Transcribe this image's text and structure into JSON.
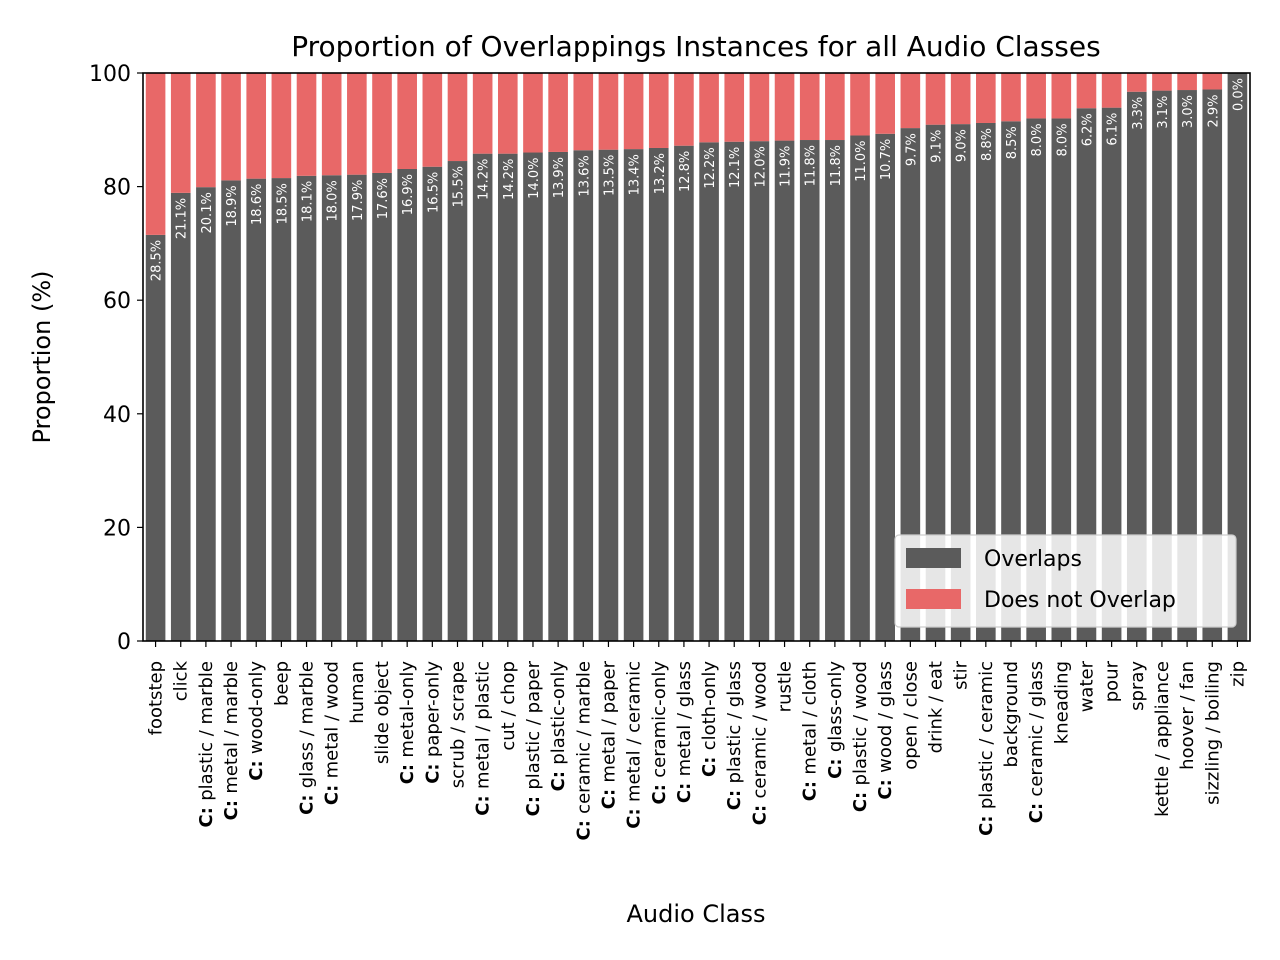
{
  "chart_data": {
    "type": "bar",
    "stacked": true,
    "title": "Proportion of Overlappings Instances for all Audio Classes",
    "xlabel": "Audio Class",
    "ylabel": "Proportion (%)",
    "ylim": [
      0,
      100
    ],
    "yticks": [
      0,
      20,
      40,
      60,
      80,
      100
    ],
    "grid": false,
    "legend_position": "bottom-right",
    "category_prefix": "C:",
    "categories": [
      {
        "label": "footstep",
        "prefixed": false
      },
      {
        "label": "click",
        "prefixed": false
      },
      {
        "label": "plastic / marble",
        "prefixed": true
      },
      {
        "label": "metal / marble",
        "prefixed": true
      },
      {
        "label": "wood-only",
        "prefixed": true
      },
      {
        "label": "beep",
        "prefixed": false
      },
      {
        "label": "glass / marble",
        "prefixed": true
      },
      {
        "label": "metal / wood",
        "prefixed": true
      },
      {
        "label": "human",
        "prefixed": false
      },
      {
        "label": "slide object",
        "prefixed": false
      },
      {
        "label": "metal-only",
        "prefixed": true
      },
      {
        "label": "paper-only",
        "prefixed": true
      },
      {
        "label": "scrub / scrape",
        "prefixed": false
      },
      {
        "label": "metal / plastic",
        "prefixed": true
      },
      {
        "label": "cut / chop",
        "prefixed": false
      },
      {
        "label": "plastic / paper",
        "prefixed": true
      },
      {
        "label": "plastic-only",
        "prefixed": true
      },
      {
        "label": "ceramic / marble",
        "prefixed": true
      },
      {
        "label": "metal / paper",
        "prefixed": true
      },
      {
        "label": "metal / ceramic",
        "prefixed": true
      },
      {
        "label": "ceramic-only",
        "prefixed": true
      },
      {
        "label": "metal / glass",
        "prefixed": true
      },
      {
        "label": "cloth-only",
        "prefixed": true
      },
      {
        "label": "plastic / glass",
        "prefixed": true
      },
      {
        "label": "ceramic / wood",
        "prefixed": true
      },
      {
        "label": "rustle",
        "prefixed": false
      },
      {
        "label": "metal / cloth",
        "prefixed": true
      },
      {
        "label": "glass-only",
        "prefixed": true
      },
      {
        "label": "plastic / wood",
        "prefixed": true
      },
      {
        "label": "wood / glass",
        "prefixed": true
      },
      {
        "label": "open / close",
        "prefixed": false
      },
      {
        "label": "drink / eat",
        "prefixed": false
      },
      {
        "label": "stir",
        "prefixed": false
      },
      {
        "label": "plastic / ceramic",
        "prefixed": true
      },
      {
        "label": "background",
        "prefixed": false
      },
      {
        "label": "ceramic / glass",
        "prefixed": true
      },
      {
        "label": "kneading",
        "prefixed": false
      },
      {
        "label": "water",
        "prefixed": false
      },
      {
        "label": "pour",
        "prefixed": false
      },
      {
        "label": "spray",
        "prefixed": false
      },
      {
        "label": "kettle / appliance",
        "prefixed": false
      },
      {
        "label": "hoover / fan",
        "prefixed": false
      },
      {
        "label": "sizzling / boiling",
        "prefixed": false
      },
      {
        "label": "zip",
        "prefixed": false
      }
    ],
    "series": [
      {
        "name": "Overlaps",
        "color": "#5b5b5b",
        "values": [
          71.5,
          78.9,
          79.9,
          81.1,
          81.4,
          81.5,
          81.9,
          82.0,
          82.1,
          82.4,
          83.1,
          83.5,
          84.5,
          85.8,
          85.8,
          86.0,
          86.1,
          86.4,
          86.5,
          86.6,
          86.8,
          87.2,
          87.8,
          87.9,
          88.0,
          88.1,
          88.2,
          88.2,
          89.0,
          89.3,
          90.3,
          90.9,
          91.0,
          91.2,
          91.5,
          92.0,
          92.0,
          93.8,
          93.9,
          96.7,
          96.9,
          97.0,
          97.1,
          100.0
        ]
      },
      {
        "name": "Does not Overlap",
        "color": "#e86868",
        "values": [
          28.5,
          21.1,
          20.1,
          18.9,
          18.6,
          18.5,
          18.1,
          18.0,
          17.9,
          17.6,
          16.9,
          16.5,
          15.5,
          14.2,
          14.2,
          14.0,
          13.9,
          13.6,
          13.5,
          13.4,
          13.2,
          12.8,
          12.2,
          12.1,
          12.0,
          11.9,
          11.8,
          11.8,
          11.0,
          10.7,
          9.7,
          9.1,
          9.0,
          8.8,
          8.5,
          8.0,
          8.0,
          6.2,
          6.1,
          3.3,
          3.1,
          3.0,
          2.9,
          0.0
        ]
      }
    ],
    "data_labels": [
      "28.5%",
      "21.1%",
      "20.1%",
      "18.9%",
      "18.6%",
      "18.5%",
      "18.1%",
      "18.0%",
      "17.9%",
      "17.6%",
      "16.9%",
      "16.5%",
      "15.5%",
      "14.2%",
      "14.2%",
      "14.0%",
      "13.9%",
      "13.6%",
      "13.5%",
      "13.4%",
      "13.2%",
      "12.8%",
      "12.2%",
      "12.1%",
      "12.0%",
      "11.9%",
      "11.8%",
      "11.8%",
      "11.0%",
      "10.7%",
      "9.7%",
      "9.1%",
      "9.0%",
      "8.8%",
      "8.5%",
      "8.0%",
      "8.0%",
      "6.2%",
      "6.1%",
      "3.3%",
      "3.1%",
      "3.0%",
      "2.9%",
      "0.0%"
    ]
  }
}
